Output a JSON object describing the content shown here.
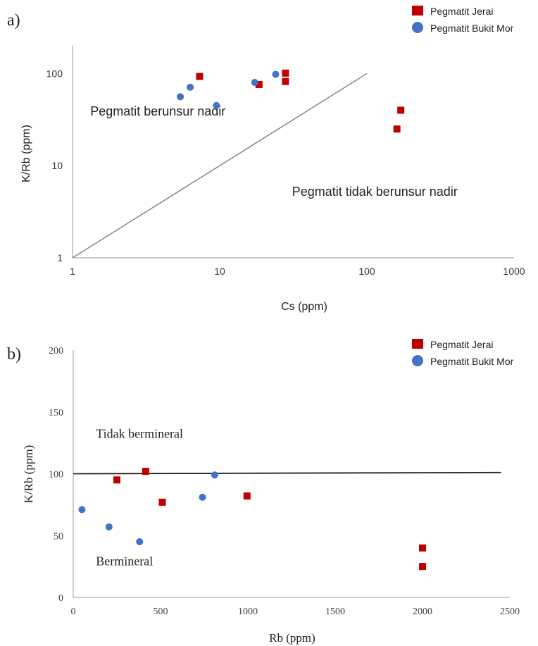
{
  "chart_data": [
    {
      "panel_label": "a)",
      "type": "scatter",
      "title": "",
      "xlabel": "Cs (ppm)",
      "ylabel": "K/Rb (ppm)",
      "x_scale": "log",
      "y_scale": "log",
      "xlim": [
        1,
        1000
      ],
      "ylim": [
        1,
        200
      ],
      "x_ticks": [
        {
          "value": 1,
          "label": "1"
        },
        {
          "value": 10,
          "label": "10"
        },
        {
          "value": 100,
          "label": "100"
        },
        {
          "value": 1000,
          "label": "1000"
        }
      ],
      "y_ticks": [
        {
          "value": 1,
          "label": "1"
        },
        {
          "value": 10,
          "label": "10"
        },
        {
          "value": 100,
          "label": "100"
        }
      ],
      "grid": false,
      "legend_position": "top-right",
      "series": [
        {
          "name": "Pegmatit Jerai",
          "marker": "square",
          "color": "#C00000",
          "points": [
            {
              "x": 7.3,
              "y": 93
            },
            {
              "x": 18.5,
              "y": 76
            },
            {
              "x": 28,
              "y": 101
            },
            {
              "x": 28,
              "y": 82
            },
            {
              "x": 160,
              "y": 25
            },
            {
              "x": 170,
              "y": 40
            }
          ]
        },
        {
          "name": "Pegmatit Bukit Mor",
          "marker": "circle",
          "color": "#4472C4",
          "points": [
            {
              "x": 5.4,
              "y": 56
            },
            {
              "x": 6.3,
              "y": 71
            },
            {
              "x": 9.5,
              "y": 45
            },
            {
              "x": 17.3,
              "y": 80
            },
            {
              "x": 24,
              "y": 98
            }
          ]
        }
      ],
      "reference_line": {
        "x": [
          1,
          100
        ],
        "y": [
          1,
          100
        ]
      },
      "annotations": [
        {
          "text": "Pegmatit berunsur nadir",
          "x": 1.32,
          "y": 35
        },
        {
          "text": "Pegmatit tidak berunsur nadir",
          "x": 31,
          "y": 4.7
        }
      ]
    },
    {
      "panel_label": "b)",
      "type": "scatter",
      "title": "",
      "xlabel": "Rb (ppm)",
      "ylabel": "K/Rb (ppm)",
      "xlim": [
        0,
        2500
      ],
      "ylim": [
        0,
        200
      ],
      "x_ticks": [
        {
          "value": 0,
          "label": "0"
        },
        {
          "value": 500,
          "label": "500"
        },
        {
          "value": 1000,
          "label": "1000"
        },
        {
          "value": 1500,
          "label": "1500"
        },
        {
          "value": 2000,
          "label": "2000"
        },
        {
          "value": 2500,
          "label": "2500"
        }
      ],
      "y_ticks": [
        {
          "value": 0,
          "label": "0"
        },
        {
          "value": 50,
          "label": "50"
        },
        {
          "value": 100,
          "label": "100"
        },
        {
          "value": 150,
          "label": "150"
        },
        {
          "value": 200,
          "label": "200"
        }
      ],
      "grid": false,
      "legend_position": "top-right",
      "series": [
        {
          "name": "Pegmatit Jerai",
          "marker": "square",
          "color": "#C00000",
          "points": [
            {
              "x": 250,
              "y": 95
            },
            {
              "x": 415,
              "y": 102
            },
            {
              "x": 510,
              "y": 77
            },
            {
              "x": 995,
              "y": 82
            },
            {
              "x": 2000,
              "y": 40
            },
            {
              "x": 2000,
              "y": 25
            }
          ]
        },
        {
          "name": "Pegmatit Bukit Mor",
          "marker": "circle",
          "color": "#4472C4",
          "points": [
            {
              "x": 50,
              "y": 71
            },
            {
              "x": 205,
              "y": 57
            },
            {
              "x": 380,
              "y": 45
            },
            {
              "x": 740,
              "y": 81
            },
            {
              "x": 810,
              "y": 99
            }
          ]
        }
      ],
      "reference_line": {
        "x": [
          0,
          2450
        ],
        "y": [
          100,
          101
        ]
      },
      "annotations": [
        {
          "text": "Tidak bermineral",
          "x": 130,
          "y": 129
        },
        {
          "text": "Bermineral",
          "x": 130,
          "y": 26
        }
      ]
    }
  ]
}
